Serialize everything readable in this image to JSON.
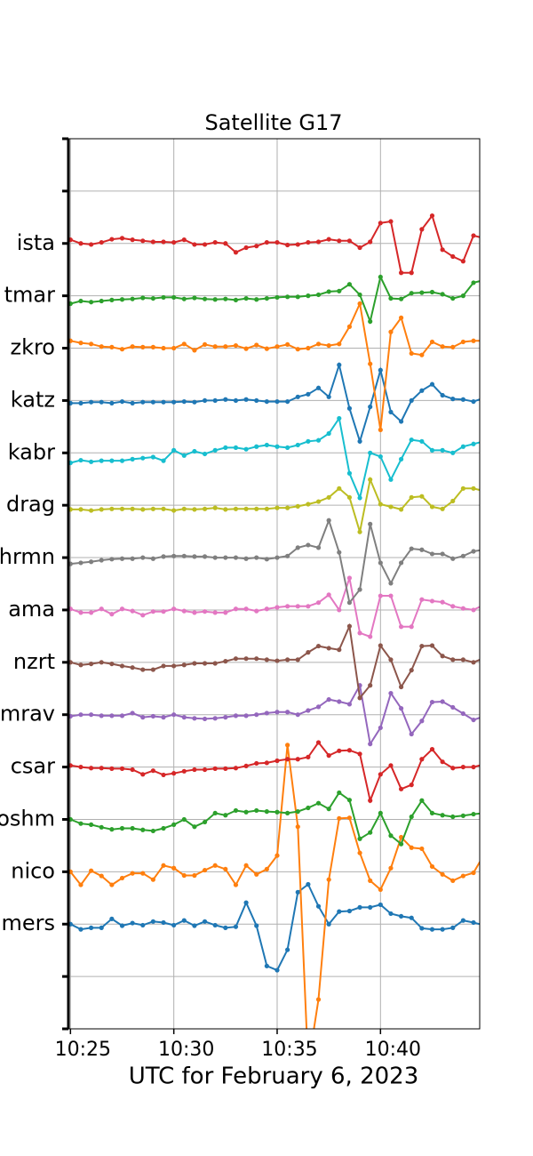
{
  "chart_data": {
    "type": "line",
    "title": "Satellite G17",
    "xlabel": "UTC for February 6, 2023",
    "x": [
      "10:25:00",
      "10:25:30",
      "10:26:00",
      "10:26:30",
      "10:27:00",
      "10:27:30",
      "10:28:00",
      "10:28:30",
      "10:29:00",
      "10:29:30",
      "10:30:00",
      "10:30:30",
      "10:31:00",
      "10:31:30",
      "10:32:00",
      "10:32:30",
      "10:33:00",
      "10:33:30",
      "10:34:00",
      "10:34:30",
      "10:35:00",
      "10:35:30",
      "10:36:00",
      "10:36:30",
      "10:37:00",
      "10:37:30",
      "10:38:00",
      "10:38:30",
      "10:39:00",
      "10:39:30",
      "10:40:00",
      "10:40:30",
      "10:41:00",
      "10:41:30",
      "10:42:00",
      "10:42:30",
      "10:43:00",
      "10:43:30",
      "10:44:00",
      "10:44:30",
      "10:45:00"
    ],
    "xlim": [
      "10:24:54",
      "10:44:48"
    ],
    "xticks": [
      "10:25",
      "10:30",
      "10:35",
      "10:40"
    ],
    "ylim": [
      -1,
      16
    ],
    "yticks": [
      {
        "value": -1,
        "label": null
      },
      {
        "value": 0,
        "label": null
      },
      {
        "value": 1,
        "label": "mers"
      },
      {
        "value": 2,
        "label": "nico"
      },
      {
        "value": 3,
        "label": "oshm"
      },
      {
        "value": 4,
        "label": "csar"
      },
      {
        "value": 5,
        "label": "mrav"
      },
      {
        "value": 6,
        "label": "nzrt"
      },
      {
        "value": 7,
        "label": "ama"
      },
      {
        "value": 8,
        "label": "hrmn"
      },
      {
        "value": 9,
        "label": "drag"
      },
      {
        "value": 10,
        "label": "kabr"
      },
      {
        "value": 11,
        "label": "katz"
      },
      {
        "value": 12,
        "label": "zkro"
      },
      {
        "value": 13,
        "label": "tmar"
      },
      {
        "value": 14,
        "label": "ista"
      },
      {
        "value": 15,
        "label": null
      },
      {
        "value": 16,
        "label": null
      }
    ],
    "grid": true,
    "series": [
      {
        "color": "#1f77b4",
        "values": [
          1.0,
          0.9,
          0.93,
          0.93,
          1.1,
          0.97,
          1.02,
          0.98,
          1.05,
          1.03,
          0.98,
          1.07,
          0.97,
          1.05,
          0.98,
          0.93,
          0.95,
          1.41,
          0.97,
          0.2,
          0.12,
          0.51,
          1.61,
          1.76,
          1.34,
          1.0,
          1.24,
          1.25,
          1.32,
          1.32,
          1.37,
          1.2,
          1.15,
          1.12,
          0.92,
          0.9,
          0.9,
          0.93,
          1.07,
          1.03,
          0.98
        ]
      },
      {
        "color": "#ff7f0e",
        "values": [
          2.0,
          1.75,
          2.02,
          1.92,
          1.75,
          1.88,
          1.97,
          1.97,
          1.85,
          2.12,
          2.07,
          1.93,
          1.93,
          2.03,
          2.12,
          2.05,
          1.75,
          2.12,
          1.95,
          2.05,
          2.31,
          4.42,
          2.86,
          -1.71,
          -0.44,
          1.85,
          3.02,
          3.03,
          2.36,
          1.83,
          1.66,
          2.07,
          2.66,
          2.46,
          2.44,
          2.1,
          1.95,
          1.83,
          1.92,
          1.98,
          2.32
        ]
      },
      {
        "color": "#2ca02c",
        "values": [
          3.0,
          2.92,
          2.9,
          2.85,
          2.81,
          2.83,
          2.83,
          2.8,
          2.78,
          2.83,
          2.9,
          3.0,
          2.86,
          2.95,
          3.12,
          3.08,
          3.17,
          3.14,
          3.17,
          3.15,
          3.14,
          3.12,
          3.15,
          3.22,
          3.31,
          3.2,
          3.51,
          3.37,
          2.63,
          2.75,
          3.12,
          2.69,
          2.53,
          3.05,
          3.36,
          3.12,
          3.08,
          3.05,
          3.07,
          3.1,
          3.12
        ]
      },
      {
        "color": "#d62728",
        "values": [
          4.03,
          4.0,
          3.98,
          3.98,
          3.97,
          3.97,
          3.95,
          3.86,
          3.93,
          3.85,
          3.88,
          3.92,
          3.95,
          3.95,
          3.97,
          3.97,
          3.98,
          4.02,
          4.07,
          4.08,
          4.12,
          4.15,
          4.15,
          4.19,
          4.47,
          4.22,
          4.31,
          4.32,
          4.25,
          3.36,
          3.86,
          4.03,
          3.58,
          3.66,
          4.15,
          4.34,
          4.1,
          3.98,
          4.0,
          4.0,
          4.05
        ]
      },
      {
        "color": "#9467bd",
        "values": [
          4.97,
          5.0,
          5.0,
          4.98,
          4.98,
          4.98,
          5.03,
          4.95,
          4.97,
          4.95,
          5.0,
          4.95,
          4.93,
          4.92,
          4.93,
          4.95,
          4.98,
          4.98,
          5.0,
          5.03,
          5.05,
          5.05,
          5.0,
          5.08,
          5.15,
          5.29,
          5.25,
          5.2,
          5.56,
          4.44,
          4.75,
          5.41,
          5.12,
          4.63,
          4.88,
          5.24,
          5.25,
          5.14,
          5.02,
          4.9,
          4.97
        ]
      },
      {
        "color": "#8c564b",
        "values": [
          6.0,
          5.95,
          5.97,
          6.0,
          5.97,
          5.93,
          5.9,
          5.86,
          5.86,
          5.93,
          5.93,
          5.95,
          5.98,
          5.98,
          5.98,
          6.02,
          6.07,
          6.07,
          6.07,
          6.05,
          6.03,
          6.05,
          6.05,
          6.19,
          6.31,
          6.27,
          6.24,
          6.69,
          5.32,
          5.56,
          6.32,
          6.05,
          5.53,
          5.85,
          6.31,
          6.32,
          6.12,
          6.05,
          6.05,
          6.0,
          6.08
        ]
      },
      {
        "color": "#e377c2",
        "values": [
          7.02,
          6.95,
          6.95,
          7.02,
          6.92,
          7.02,
          6.98,
          6.9,
          6.97,
          6.97,
          7.02,
          6.98,
          6.95,
          6.97,
          6.95,
          6.95,
          7.02,
          7.02,
          6.98,
          7.02,
          7.05,
          7.07,
          7.07,
          7.07,
          7.14,
          7.29,
          7.0,
          7.61,
          6.56,
          6.49,
          7.27,
          7.27,
          6.68,
          6.68,
          7.2,
          7.17,
          7.15,
          7.07,
          7.03,
          7.0,
          7.1
        ]
      },
      {
        "color": "#7f7f7f",
        "values": [
          7.88,
          7.9,
          7.92,
          7.95,
          7.97,
          7.98,
          7.98,
          8.0,
          7.98,
          8.02,
          8.03,
          8.03,
          8.02,
          8.02,
          8.0,
          8.0,
          8.0,
          7.98,
          8.0,
          7.97,
          8.0,
          8.03,
          8.19,
          8.24,
          8.19,
          8.71,
          8.1,
          7.14,
          7.39,
          8.64,
          7.9,
          7.51,
          7.9,
          8.17,
          8.15,
          8.07,
          8.07,
          7.98,
          8.03,
          8.12,
          8.15
        ]
      },
      {
        "color": "#bcbd22",
        "values": [
          8.92,
          8.92,
          8.9,
          8.92,
          8.93,
          8.93,
          8.93,
          8.92,
          8.93,
          8.93,
          8.9,
          8.93,
          8.92,
          8.93,
          8.95,
          8.92,
          8.93,
          8.93,
          8.93,
          8.93,
          8.95,
          8.95,
          8.98,
          9.02,
          9.07,
          9.15,
          9.32,
          9.15,
          8.49,
          9.49,
          9.02,
          8.97,
          8.92,
          9.15,
          9.17,
          8.97,
          8.93,
          9.08,
          9.32,
          9.32,
          9.27
        ]
      },
      {
        "color": "#17becf",
        "values": [
          9.81,
          9.86,
          9.83,
          9.85,
          9.85,
          9.85,
          9.88,
          9.9,
          9.92,
          9.85,
          10.05,
          9.95,
          10.03,
          9.98,
          10.05,
          10.1,
          10.1,
          10.07,
          10.12,
          10.15,
          10.12,
          10.1,
          10.15,
          10.22,
          10.24,
          10.37,
          10.66,
          9.61,
          9.14,
          10.0,
          9.93,
          9.49,
          9.88,
          10.25,
          10.22,
          10.05,
          10.05,
          10.0,
          10.12,
          10.17,
          10.22
        ]
      },
      {
        "color": "#1f77b4",
        "values": [
          10.95,
          10.95,
          10.97,
          10.97,
          10.95,
          10.98,
          10.95,
          10.97,
          10.97,
          10.97,
          10.97,
          10.98,
          10.97,
          11.0,
          11.0,
          11.02,
          11.0,
          11.02,
          11.0,
          10.98,
          10.98,
          10.98,
          11.07,
          11.12,
          11.24,
          11.07,
          11.68,
          10.85,
          10.22,
          10.88,
          11.58,
          10.78,
          10.6,
          11.0,
          11.19,
          11.31,
          11.1,
          11.03,
          11.02,
          10.98,
          11.05
        ]
      },
      {
        "color": "#ff7f0e",
        "values": [
          12.14,
          12.1,
          12.08,
          12.03,
          12.02,
          11.98,
          12.03,
          12.02,
          12.02,
          12.0,
          12.0,
          12.08,
          11.96,
          12.07,
          12.03,
          12.03,
          12.05,
          11.99,
          12.06,
          11.99,
          12.03,
          12.07,
          11.98,
          12.0,
          12.08,
          12.05,
          12.08,
          12.41,
          12.85,
          11.7,
          10.44,
          12.31,
          12.58,
          11.9,
          11.87,
          12.12,
          12.03,
          12.02,
          12.12,
          12.14,
          12.14
        ]
      },
      {
        "color": "#2ca02c",
        "values": [
          12.85,
          12.9,
          12.88,
          12.9,
          12.92,
          12.93,
          12.94,
          12.96,
          12.95,
          12.97,
          12.97,
          12.94,
          12.96,
          12.94,
          12.93,
          12.94,
          12.92,
          12.95,
          12.93,
          12.95,
          12.97,
          12.98,
          12.98,
          13.0,
          13.02,
          13.08,
          13.09,
          13.22,
          13.02,
          12.51,
          13.36,
          12.95,
          12.94,
          13.05,
          13.06,
          13.07,
          13.03,
          12.95,
          13.0,
          13.25,
          13.3
        ]
      },
      {
        "color": "#d62728",
        "values": [
          14.07,
          14.0,
          13.98,
          14.02,
          14.08,
          14.1,
          14.07,
          14.05,
          14.03,
          14.03,
          14.02,
          14.07,
          13.98,
          13.98,
          14.02,
          14.0,
          13.83,
          13.92,
          13.95,
          14.02,
          14.02,
          13.97,
          13.98,
          14.02,
          14.03,
          14.08,
          14.05,
          14.05,
          13.92,
          14.03,
          14.39,
          14.42,
          13.44,
          13.44,
          14.27,
          14.53,
          13.88,
          13.75,
          13.66,
          14.15,
          14.1
        ]
      }
    ]
  }
}
